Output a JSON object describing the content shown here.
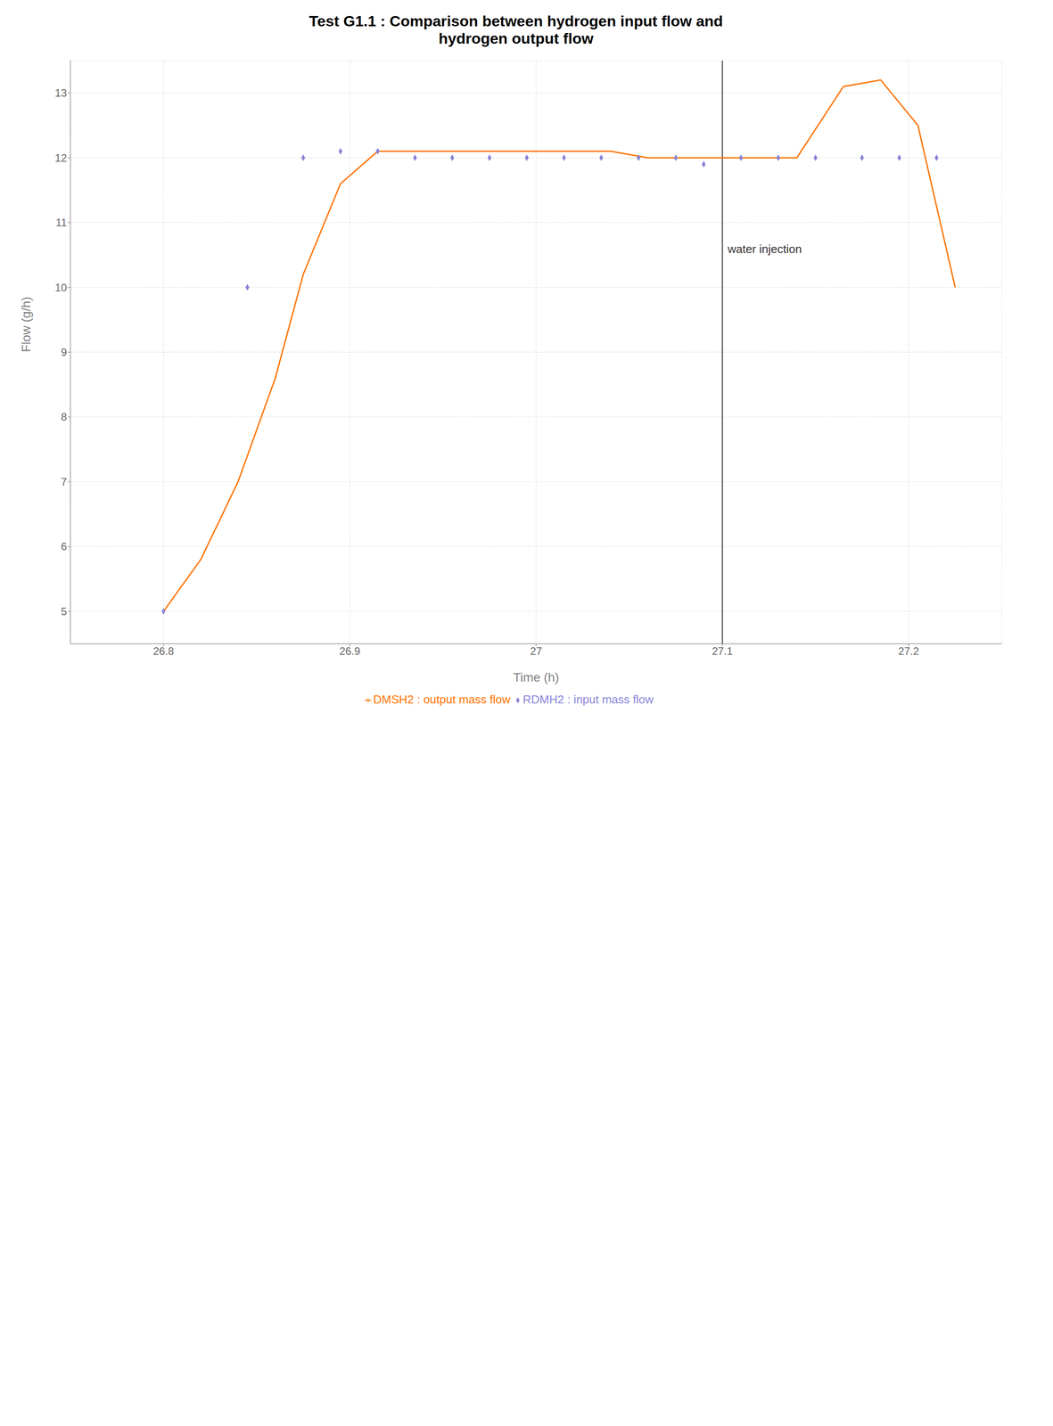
{
  "chart_data": {
    "type": "line",
    "title": "Test G1.1 : Comparison between hydrogen input flow and\nhydrogen output flow",
    "x_label": "Time (h)",
    "y_label": "Flow (g/h)",
    "xlim": [
      26.75,
      27.25
    ],
    "ylim": [
      4.5,
      13.5
    ],
    "xticks": [
      26.8,
      26.9,
      27,
      27.1,
      27.2
    ],
    "yticks": [
      5,
      6,
      7,
      8,
      9,
      10,
      11,
      12,
      13
    ],
    "grid": true,
    "legend": "bottom",
    "annotations": [
      {
        "text": "water injection",
        "x": 27.1
      }
    ],
    "series": [
      {
        "name": "RDMH2 : input mass flow",
        "type": "scatter",
        "marker": "diamond",
        "color": "#8884d8",
        "x": [
          26.8,
          26.845,
          26.875,
          26.895,
          26.915,
          26.935,
          26.955,
          26.975,
          26.995,
          27.015,
          27.035,
          27.055,
          27.075,
          27.09,
          27.11,
          27.13,
          27.15,
          27.175,
          27.195,
          27.215
        ],
        "values": [
          5.0,
          10.0,
          12.0,
          12.1,
          12.1,
          12.0,
          12.0,
          12.0,
          12.0,
          12.0,
          12.0,
          12.0,
          12.0,
          11.9,
          12.0,
          12.0,
          12.0,
          12.0,
          12.0,
          12.0
        ]
      },
      {
        "name": "DMSH2 : output mass flow",
        "type": "line",
        "line_style": "solid",
        "color": "#ff7300",
        "x": [
          26.8,
          26.82,
          26.84,
          26.86,
          26.875,
          26.895,
          26.915,
          26.945,
          26.965,
          26.99,
          27.01,
          27.04,
          27.06,
          27.09,
          27.11,
          27.14,
          27.165,
          27.185,
          27.205,
          27.225
        ],
        "values": [
          5.0,
          5.8,
          7.0,
          8.6,
          10.2,
          11.6,
          12.1,
          12.1,
          12.1,
          12.1,
          12.1,
          12.1,
          12.0,
          12.0,
          12.0,
          12.0,
          13.1,
          13.2,
          12.5,
          10.0
        ]
      }
    ]
  }
}
